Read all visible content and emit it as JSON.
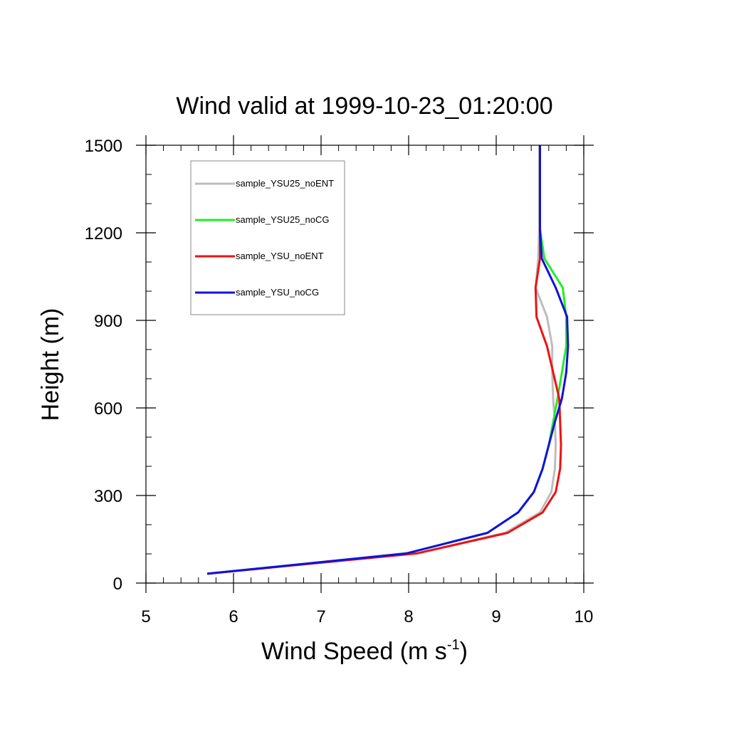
{
  "chart_data": {
    "type": "line",
    "title": "Wind valid at 1999-10-23_01:20:00",
    "xlabel_main": "Wind Speed (m s",
    "xlabel_sup": "-1",
    "xlabel_close": ")",
    "ylabel": "Height (m)",
    "xlim": [
      5,
      10
    ],
    "ylim": [
      0,
      1500
    ],
    "xticks": [
      {
        "value": 5,
        "label": "5"
      },
      {
        "value": 6,
        "label": "6"
      },
      {
        "value": 7,
        "label": "7"
      },
      {
        "value": 8,
        "label": "8"
      },
      {
        "value": 9,
        "label": "9"
      },
      {
        "value": 10,
        "label": "10"
      }
    ],
    "yticks": [
      {
        "value": 0,
        "label": "0"
      },
      {
        "value": 300,
        "label": "300"
      },
      {
        "value": 600,
        "label": "600"
      },
      {
        "value": 900,
        "label": "900"
      },
      {
        "value": 1200,
        "label": "1200"
      },
      {
        "value": 1500,
        "label": "1500"
      }
    ],
    "x_minor_step": 0.2,
    "y_minor_step": 100,
    "legend_position": "top-left",
    "series": [
      {
        "name": "sample_YSU25_noENT",
        "color": "#bdbdbd",
        "points": [
          [
            5.7,
            32
          ],
          [
            8.1,
            102
          ],
          [
            9.1,
            172
          ],
          [
            9.5,
            242
          ],
          [
            9.63,
            312
          ],
          [
            9.67,
            392
          ],
          [
            9.68,
            472
          ],
          [
            9.67,
            552
          ],
          [
            9.65,
            632
          ],
          [
            9.64,
            722
          ],
          [
            9.64,
            812
          ],
          [
            9.58,
            912
          ],
          [
            9.45,
            1012
          ],
          [
            9.48,
            1112
          ],
          [
            9.49,
            1212
          ],
          [
            9.49,
            1500
          ]
        ]
      },
      {
        "name": "sample_YSU25_noCG",
        "color": "#22ee22",
        "points": [
          [
            5.7,
            32
          ],
          [
            7.98,
            102
          ],
          [
            8.9,
            172
          ],
          [
            9.25,
            242
          ],
          [
            9.43,
            312
          ],
          [
            9.53,
            392
          ],
          [
            9.6,
            472
          ],
          [
            9.65,
            552
          ],
          [
            9.7,
            632
          ],
          [
            9.75,
            722
          ],
          [
            9.8,
            812
          ],
          [
            9.8,
            912
          ],
          [
            9.76,
            1012
          ],
          [
            9.55,
            1112
          ],
          [
            9.5,
            1212
          ],
          [
            9.5,
            1500
          ]
        ]
      },
      {
        "name": "sample_YSU_noENT",
        "color": "#ee1111",
        "points": [
          [
            5.7,
            32
          ],
          [
            8.1,
            102
          ],
          [
            9.13,
            172
          ],
          [
            9.53,
            242
          ],
          [
            9.68,
            312
          ],
          [
            9.73,
            392
          ],
          [
            9.74,
            472
          ],
          [
            9.73,
            552
          ],
          [
            9.72,
            632
          ],
          [
            9.65,
            722
          ],
          [
            9.58,
            812
          ],
          [
            9.46,
            912
          ],
          [
            9.45,
            1012
          ],
          [
            9.5,
            1112
          ],
          [
            9.5,
            1212
          ],
          [
            9.5,
            1500
          ]
        ]
      },
      {
        "name": "sample_YSU_noCG",
        "color": "#1111dd",
        "points": [
          [
            5.7,
            32
          ],
          [
            7.98,
            102
          ],
          [
            8.9,
            172
          ],
          [
            9.25,
            242
          ],
          [
            9.43,
            312
          ],
          [
            9.53,
            392
          ],
          [
            9.6,
            472
          ],
          [
            9.67,
            552
          ],
          [
            9.75,
            632
          ],
          [
            9.8,
            722
          ],
          [
            9.82,
            812
          ],
          [
            9.81,
            912
          ],
          [
            9.68,
            1012
          ],
          [
            9.52,
            1112
          ],
          [
            9.5,
            1212
          ],
          [
            9.5,
            1500
          ]
        ]
      }
    ]
  }
}
